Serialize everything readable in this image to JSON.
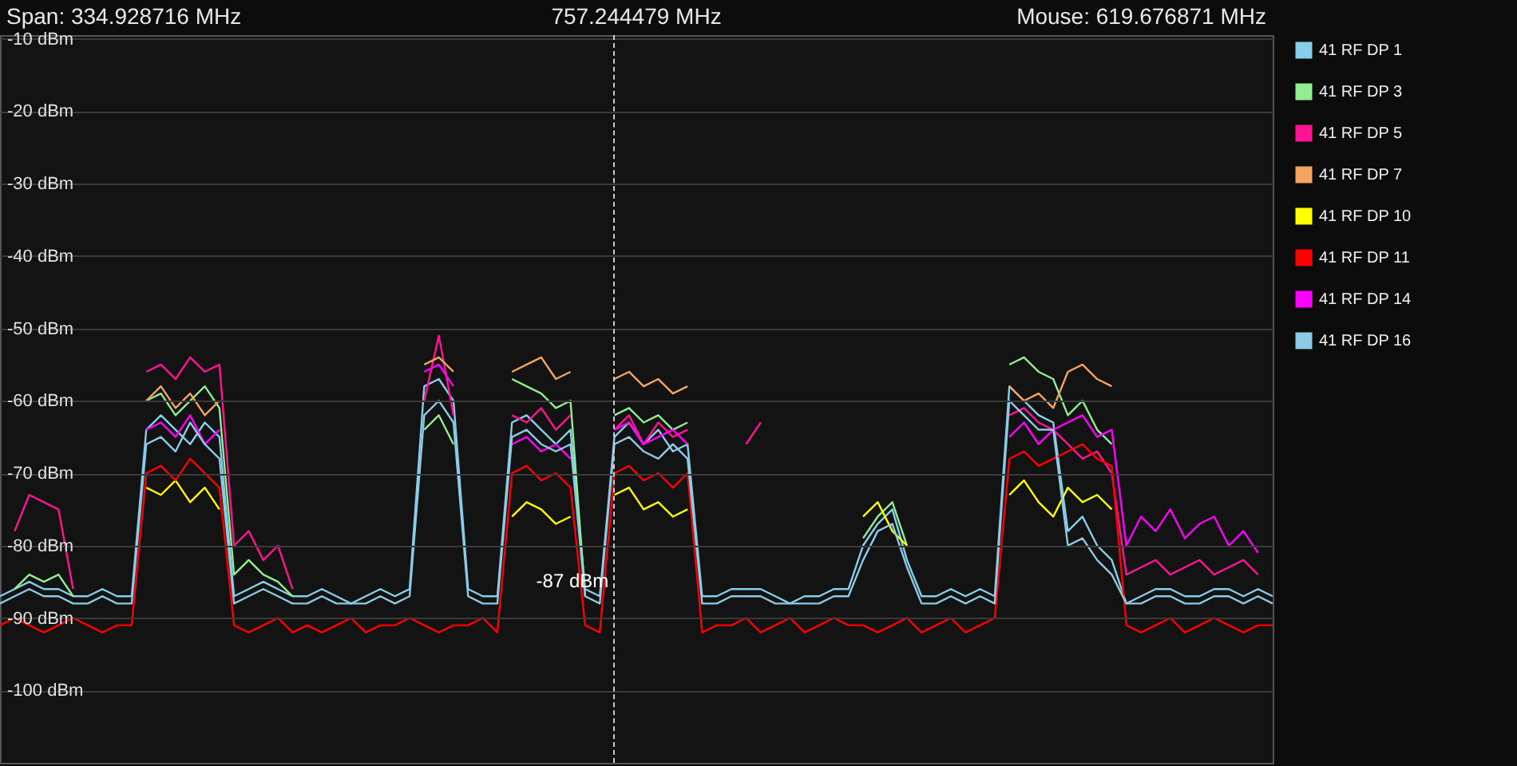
{
  "chart_data": {
    "type": "line",
    "title": "757.244479 MHz",
    "annotations": [
      "Span: 334.928716 MHz",
      "Mouse: 619.676871 MHz",
      "-87 dBm"
    ],
    "ylim": [
      -110,
      -9.5
    ],
    "yticks": [
      {
        "value": -10,
        "label": "-10 dBm"
      },
      {
        "value": -20,
        "label": "-20 dBm"
      },
      {
        "value": -30,
        "label": "-30 dBm"
      },
      {
        "value": -40,
        "label": "-40 dBm"
      },
      {
        "value": -50,
        "label": "-50 dBm"
      },
      {
        "value": -60,
        "label": "-60 dBm"
      },
      {
        "value": -70,
        "label": "-70 dBm"
      },
      {
        "value": -80,
        "label": "-80 dBm"
      },
      {
        "value": -90,
        "label": "-90 dBm"
      },
      {
        "value": -100,
        "label": "-100 dBm"
      }
    ],
    "tick_labels": "y",
    "grid": "y",
    "legend": "right",
    "categories": [
      null,
      null,
      null,
      null,
      null,
      null,
      null,
      null,
      null,
      null,
      null,
      null,
      null,
      null,
      null,
      null,
      null,
      null,
      null,
      null,
      null,
      null,
      null,
      null,
      null,
      null,
      null,
      null,
      null,
      null,
      null,
      null,
      null,
      null,
      null,
      null,
      null,
      null,
      null,
      null,
      null,
      null,
      null,
      null,
      null,
      null,
      null,
      null,
      null,
      null,
      null,
      null,
      null,
      null,
      null,
      null,
      null,
      null,
      null,
      null,
      null,
      null,
      null,
      null,
      null,
      null,
      null,
      null,
      null,
      null,
      null,
      null,
      null,
      null,
      null,
      null,
      null,
      null,
      null,
      null,
      null,
      null,
      null,
      null,
      null,
      null,
      null,
      null
    ],
    "series": [
      {
        "name": "41 RF DP 1",
        "color": "#87ceeb",
        "values": [
          -87,
          -86,
          -85,
          -86,
          -86,
          -87,
          -87,
          -86,
          -87,
          -87,
          -64,
          -62,
          -64,
          -66,
          -63,
          -65,
          -87,
          -86,
          -85,
          -86,
          -87,
          -87,
          -86,
          -87,
          -88,
          -87,
          -86,
          -87,
          -86,
          -58,
          -57,
          -60,
          -86,
          -87,
          -87,
          -63,
          -62,
          -64,
          -66,
          -64,
          -86,
          -87,
          -65,
          -63,
          -66,
          -64,
          -67,
          -66,
          -87,
          -87,
          -86,
          -86,
          -86,
          -87,
          -88,
          -87,
          -87,
          -86,
          -86,
          -80,
          -77,
          -75,
          -82,
          -87,
          -87,
          -86,
          -87,
          -86,
          -87,
          -58,
          -60,
          -62,
          -63,
          -78,
          -76,
          -80,
          -82,
          -88,
          -87,
          -86,
          -86,
          -87,
          -87,
          -86,
          -86,
          -87,
          -86,
          -87
        ]
      },
      {
        "name": "41 RF DP 3",
        "color": "#90ee90",
        "values": [
          null,
          -86,
          -84,
          -85,
          -84,
          -87,
          null,
          null,
          null,
          null,
          -60,
          -59,
          -62,
          -60,
          -58,
          -61,
          -84,
          -82,
          -84,
          -85,
          -87,
          null,
          null,
          null,
          null,
          null,
          null,
          null,
          null,
          -64,
          -62,
          -66,
          null,
          null,
          null,
          -57,
          -58,
          -59,
          -61,
          -60,
          -87,
          null,
          -62,
          -61,
          -63,
          -62,
          -64,
          -63,
          null,
          null,
          null,
          null,
          null,
          null,
          null,
          null,
          null,
          null,
          null,
          -79,
          -76,
          -74,
          -80,
          null,
          null,
          null,
          null,
          null,
          null,
          -55,
          -54,
          -56,
          -57,
          -62,
          -60,
          -64,
          -66,
          null,
          null,
          null,
          null,
          null,
          null,
          null,
          null,
          null,
          null,
          null
        ]
      },
      {
        "name": "41 RF DP 5",
        "color": "#ff1493",
        "values": [
          null,
          -78,
          -73,
          -74,
          -75,
          -86,
          null,
          null,
          null,
          null,
          -56,
          -55,
          -57,
          -54,
          -56,
          -55,
          -80,
          -78,
          -82,
          -80,
          -86,
          null,
          null,
          null,
          null,
          null,
          null,
          null,
          null,
          -60,
          -51,
          -62,
          null,
          null,
          null,
          -62,
          -63,
          -61,
          -64,
          -62,
          null,
          null,
          -64,
          -62,
          -66,
          -63,
          -65,
          -64,
          null,
          null,
          null,
          -66,
          -63,
          null,
          null,
          null,
          null,
          null,
          null,
          null,
          null,
          null,
          null,
          null,
          null,
          null,
          null,
          null,
          null,
          -62,
          -61,
          -63,
          -64,
          -66,
          -68,
          -67,
          -70,
          -84,
          -83,
          -82,
          -84,
          -83,
          -82,
          -84,
          -83,
          -82,
          -84,
          null
        ]
      },
      {
        "name": "41 RF DP 7",
        "color": "#f4a460",
        "values": [
          null,
          null,
          null,
          null,
          null,
          null,
          null,
          null,
          null,
          null,
          -60,
          -58,
          -61,
          -59,
          -62,
          -60,
          null,
          null,
          null,
          null,
          null,
          null,
          null,
          null,
          null,
          null,
          null,
          null,
          null,
          -55,
          -54,
          -56,
          null,
          null,
          null,
          -56,
          -55,
          -54,
          -57,
          -56,
          null,
          null,
          -57,
          -56,
          -58,
          -57,
          -59,
          -58,
          null,
          null,
          null,
          null,
          null,
          null,
          null,
          null,
          null,
          null,
          null,
          null,
          null,
          null,
          null,
          null,
          null,
          null,
          null,
          null,
          null,
          -58,
          -60,
          -59,
          -61,
          -56,
          -55,
          -57,
          -58,
          null,
          null,
          null,
          null,
          null,
          null,
          null,
          null,
          null,
          null,
          null
        ]
      },
      {
        "name": "41 RF DP 10",
        "color": "#ffff00",
        "values": [
          null,
          null,
          null,
          null,
          null,
          null,
          null,
          null,
          null,
          null,
          -72,
          -73,
          -71,
          -74,
          -72,
          -75,
          null,
          null,
          null,
          null,
          null,
          null,
          null,
          null,
          null,
          null,
          null,
          null,
          null,
          null,
          null,
          null,
          null,
          null,
          null,
          -76,
          -74,
          -75,
          -77,
          -76,
          null,
          null,
          -73,
          -72,
          -75,
          -74,
          -76,
          -75,
          null,
          null,
          null,
          null,
          null,
          null,
          null,
          null,
          null,
          null,
          null,
          -76,
          -74,
          -78,
          -80,
          null,
          null,
          null,
          null,
          null,
          null,
          -73,
          -71,
          -74,
          -76,
          -72,
          -74,
          -73,
          -75,
          null,
          null,
          null,
          null,
          null,
          null,
          null,
          null,
          null,
          null,
          null
        ]
      },
      {
        "name": "41 RF DP 11",
        "color": "#ff0000",
        "values": [
          -91,
          -90,
          -91,
          -92,
          -91,
          -90,
          -91,
          -92,
          -91,
          -91,
          -70,
          -69,
          -71,
          -68,
          -70,
          -72,
          -91,
          -92,
          -91,
          -90,
          -92,
          -91,
          -92,
          -91,
          -90,
          -92,
          -91,
          -91,
          -90,
          -91,
          -92,
          -91,
          -91,
          -90,
          -92,
          -70,
          -69,
          -71,
          -70,
          -72,
          -91,
          -92,
          -70,
          -69,
          -71,
          -70,
          -72,
          -70,
          -92,
          -91,
          -91,
          -90,
          -92,
          -91,
          -90,
          -92,
          -91,
          -90,
          -91,
          -91,
          -92,
          -91,
          -90,
          -92,
          -91,
          -90,
          -92,
          -91,
          -90,
          -68,
          -67,
          -69,
          -68,
          -67,
          -66,
          -68,
          -69,
          -91,
          -92,
          -91,
          -90,
          -92,
          -91,
          -90,
          -91,
          -92,
          -91,
          -91
        ]
      },
      {
        "name": "41 RF DP 14",
        "color": "#ff00ff",
        "values": [
          null,
          null,
          null,
          null,
          null,
          null,
          null,
          null,
          null,
          null,
          -64,
          -63,
          -65,
          -62,
          -66,
          -64,
          null,
          null,
          null,
          null,
          null,
          null,
          null,
          null,
          null,
          null,
          null,
          null,
          null,
          -56,
          -55,
          -58,
          null,
          null,
          null,
          -66,
          -65,
          -67,
          -66,
          -68,
          null,
          null,
          -64,
          -63,
          -66,
          -65,
          -64,
          -66,
          null,
          null,
          null,
          null,
          null,
          null,
          null,
          null,
          null,
          null,
          null,
          null,
          null,
          null,
          null,
          null,
          null,
          null,
          null,
          null,
          null,
          -65,
          -63,
          -66,
          -64,
          -63,
          -62,
          -65,
          -64,
          -80,
          -76,
          -78,
          -75,
          -79,
          -77,
          -76,
          -80,
          -78,
          -81,
          null
        ]
      },
      {
        "name": "41 RF DP 16",
        "color": "#8ecae6",
        "values": [
          -88,
          -87,
          -86,
          -87,
          -87,
          -88,
          -88,
          -87,
          -88,
          -88,
          -66,
          -65,
          -67,
          -63,
          -66,
          -68,
          -88,
          -87,
          -86,
          -87,
          -88,
          -88,
          -87,
          -88,
          -88,
          -88,
          -87,
          -88,
          -87,
          -62,
          -60,
          -63,
          -87,
          -88,
          -88,
          -65,
          -64,
          -66,
          -67,
          -66,
          -87,
          -88,
          -66,
          -65,
          -67,
          -68,
          -66,
          -68,
          -88,
          -88,
          -87,
          -87,
          -87,
          -88,
          -88,
          -88,
          -88,
          -87,
          -87,
          -82,
          -78,
          -77,
          -83,
          -88,
          -88,
          -87,
          -88,
          -87,
          -88,
          -60,
          -62,
          -64,
          -64,
          -80,
          -79,
          -82,
          -84,
          -88,
          -88,
          -87,
          -87,
          -88,
          -88,
          -87,
          -87,
          -88,
          -87,
          -88
        ]
      }
    ]
  }
}
